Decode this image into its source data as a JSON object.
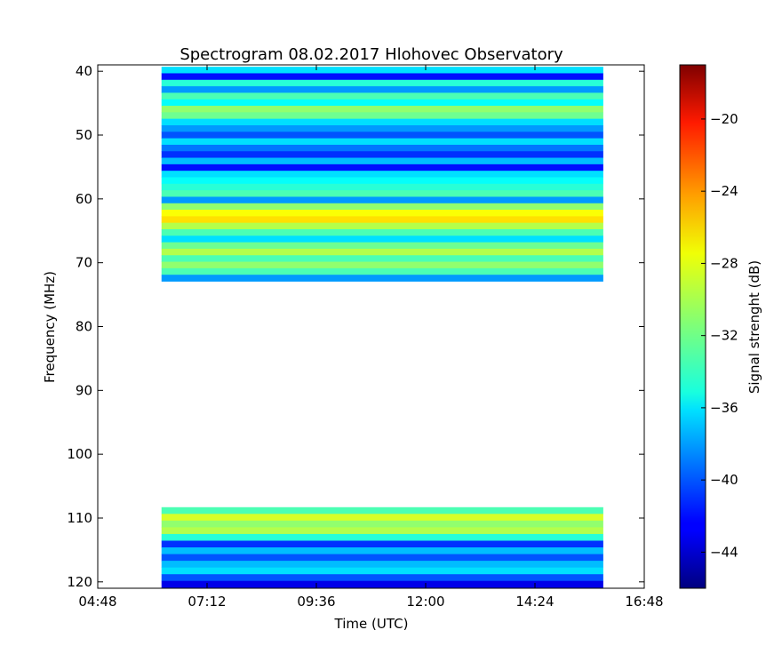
{
  "chart_data": {
    "type": "heatmap",
    "title": "Spectrogram 08.02.2017 Hlohovec Observatory",
    "xlabel": "Time (UTC)",
    "ylabel": "Frequency (MHz)",
    "colorbar_label": "Signal strenght (dB)",
    "colormap": "jet",
    "x_range": [
      "04:48",
      "16:48"
    ],
    "x_ticks": [
      "04:48",
      "07:12",
      "09:36",
      "12:00",
      "14:24",
      "16:48"
    ],
    "y_range": [
      39,
      121
    ],
    "y_inverted": true,
    "y_ticks": [
      40,
      50,
      60,
      70,
      80,
      90,
      100,
      110,
      120
    ],
    "color_range": [
      -46,
      -17
    ],
    "colorbar_ticks": [
      -20,
      -24,
      -28,
      -32,
      -36,
      -40,
      -44
    ],
    "data_time_range": [
      "06:12",
      "15:54"
    ],
    "bands": [
      {
        "freq_range": [
          39.3,
          72.9
        ],
        "rows": [
          {
            "f": 40,
            "db": -36
          },
          {
            "f": 41,
            "db": -42
          },
          {
            "f": 42,
            "db": -34
          },
          {
            "f": 43,
            "db": -38
          },
          {
            "f": 44,
            "db": -33
          },
          {
            "f": 45,
            "db": -35
          },
          {
            "f": 46,
            "db": -31
          },
          {
            "f": 47,
            "db": -32
          },
          {
            "f": 48,
            "db": -36
          },
          {
            "f": 49,
            "db": -38
          },
          {
            "f": 50,
            "db": -40
          },
          {
            "f": 51,
            "db": -36
          },
          {
            "f": 52,
            "db": -39
          },
          {
            "f": 53,
            "db": -41
          },
          {
            "f": 54,
            "db": -37
          },
          {
            "f": 55,
            "db": -42
          },
          {
            "f": 56,
            "db": -36
          },
          {
            "f": 57,
            "db": -35
          },
          {
            "f": 58,
            "db": -34
          },
          {
            "f": 59,
            "db": -33
          },
          {
            "f": 60,
            "db": -38
          },
          {
            "f": 61,
            "db": -31
          },
          {
            "f": 62,
            "db": -28
          },
          {
            "f": 63,
            "db": -27
          },
          {
            "f": 64,
            "db": -30
          },
          {
            "f": 65,
            "db": -33
          },
          {
            "f": 66,
            "db": -36
          },
          {
            "f": 67,
            "db": -32
          },
          {
            "f": 68,
            "db": -30
          },
          {
            "f": 69,
            "db": -33
          },
          {
            "f": 70,
            "db": -31
          },
          {
            "f": 71,
            "db": -33
          },
          {
            "f": 72,
            "db": -38
          }
        ]
      },
      {
        "freq_range": [
          108.3,
          120.9
        ],
        "rows": [
          {
            "f": 109,
            "db": -33
          },
          {
            "f": 110,
            "db": -29
          },
          {
            "f": 111,
            "db": -31
          },
          {
            "f": 112,
            "db": -30
          },
          {
            "f": 113,
            "db": -34
          },
          {
            "f": 114,
            "db": -41
          },
          {
            "f": 115,
            "db": -37
          },
          {
            "f": 116,
            "db": -40
          },
          {
            "f": 117,
            "db": -37
          },
          {
            "f": 118,
            "db": -36
          },
          {
            "f": 119,
            "db": -40
          },
          {
            "f": 120,
            "db": -43
          }
        ]
      }
    ]
  }
}
